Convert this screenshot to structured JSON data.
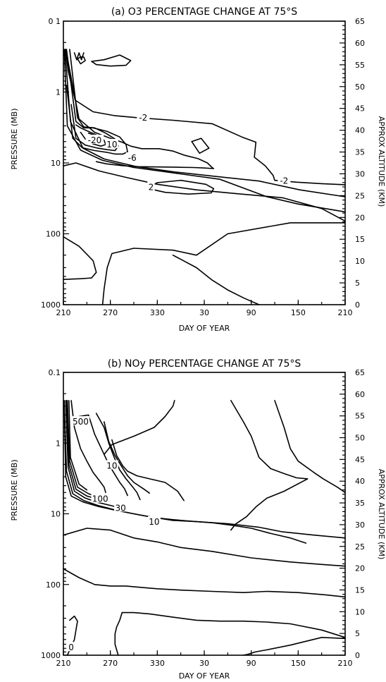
{
  "chart_data": [
    {
      "type": "contour",
      "title": "(a) O3 PERCENTAGE CHANGE AT 75°S",
      "xlabel": "DAY OF YEAR",
      "ylabel": "PRESSURE (MB)",
      "y2label": "APPROX ALTITUDE (KM)",
      "x_ticks": [
        "210",
        "270",
        "330",
        "30",
        "90",
        "150",
        "210"
      ],
      "y_ticks": [
        "0 1",
        "1",
        "10",
        "100",
        "1000"
      ],
      "y2_ticks": [
        "0",
        "5",
        "10",
        "15",
        "20",
        "25",
        "30",
        "35",
        "40",
        "45",
        "50",
        "55",
        "60",
        "65"
      ],
      "contour_labels": [
        {
          "text": "-2",
          "x": 312,
          "p": 2.3
        },
        {
          "text": "-20",
          "x": 250,
          "p": 4.8
        },
        {
          "text": "10",
          "x": 272,
          "p": 5.5
        },
        {
          "text": "-6",
          "x": 298,
          "p": 8.5
        },
        {
          "text": "2",
          "x": 322,
          "p": 22
        },
        {
          "text": "-2",
          "x": 492,
          "p": 18
        }
      ],
      "contours": [
        {
          "x": [
            213,
            216,
            225,
            248,
            275,
            305,
            350,
            400,
            438,
            456,
            454,
            468,
            478,
            480,
            508,
            540,
            570
          ],
          "p": [
            0.25,
            0.5,
            1.3,
            1.9,
            2.15,
            2.3,
            2.5,
            2.8,
            4.3,
            5.1,
            8.3,
            11,
            15,
            17.6,
            18.7,
            19.6,
            20.3
          ]
        },
        {
          "x": [
            212,
            219,
            235,
            262,
            302,
            352,
            407,
            460,
            512,
            570
          ],
          "p": [
            0.25,
            2.6,
            6.2,
            8.8,
            11.2,
            13.4,
            15.6,
            18,
            24,
            30
          ]
        },
        {
          "x": [
            211,
            215,
            232,
            260,
            300,
            350,
            410,
            470,
            510,
            570
          ],
          "p": [
            0.25,
            3,
            6.6,
            9.2,
            11.6,
            13.8,
            17,
            30,
            38,
            49
          ]
        },
        {
          "x": [
            213,
            230,
            250,
            268,
            285,
            296,
            310,
            332,
            350,
            365,
            382,
            394,
            400,
            402,
            390,
            376,
            355,
            330,
            305,
            285,
            265,
            252
          ],
          "p": [
            0.25,
            2.4,
            3.7,
            4.4,
            5.1,
            5.8,
            6.3,
            6.3,
            6.8,
            7.8,
            8.7,
            10,
            11.6,
            12,
            11.8,
            11.6,
            11.5,
            11.4,
            11.3,
            10.9,
            10.3,
            9.6
          ]
        },
        {
          "x": [
            214,
            226,
            236,
            248,
            266,
            282,
            290,
            292,
            286,
            276,
            266,
            250,
            234,
            222,
            214
          ],
          "p": [
            0.25,
            2.6,
            3.2,
            3.2,
            3.6,
            4.3,
            5.5,
            7,
            7.5,
            7.5,
            7.1,
            6.7,
            6.1,
            4.5,
            0.8
          ]
        },
        {
          "x": [
            218,
            228,
            236,
            250,
            264,
            276,
            280,
            276,
            266,
            254,
            238,
            226,
            220
          ],
          "p": [
            0.25,
            2.3,
            3.1,
            3.2,
            3.8,
            4.6,
            5.8,
            6.7,
            6.5,
            6.2,
            5.6,
            4.5,
            1.5
          ]
        },
        {
          "x": [
            226,
            232,
            242,
            254,
            262,
            264,
            258,
            248,
            238,
            232
          ],
          "p": [
            2.9,
            3.2,
            3.6,
            4.1,
            4.8,
            5.5,
            5.8,
            5.4,
            4.6,
            3.7
          ]
        },
        {
          "x": [
            242,
            248,
            250,
            246,
            242
          ],
          "p": [
            3.8,
            4,
            4.5,
            4.7,
            4.3
          ]
        },
        {
          "x": [
            330,
            360,
            392,
            402,
            399,
            370,
            340,
            326,
            321,
            330
          ],
          "p": [
            19,
            17.6,
            20,
            23,
            26.5,
            27.5,
            26,
            24,
            21.5,
            19
          ]
        },
        {
          "x": [
            374,
            386,
            396,
            384,
            374
          ],
          "p": [
            5,
            4.5,
            6.2,
            7.3,
            5
          ]
        },
        {
          "x": [
            246,
            262,
            282,
            296,
            290,
            270,
            252,
            246
          ],
          "p": [
            0.37,
            0.35,
            0.3,
            0.36,
            0.42,
            0.43,
            0.41,
            0.37
          ]
        },
        {
          "x": [
            232,
            236,
            238,
            232,
            228,
            232
          ],
          "p": [
            0.32,
            0.32,
            0.36,
            0.4,
            0.34,
            0.32
          ]
        },
        {
          "x": [
            224,
            227,
            230,
            233,
            236
          ],
          "p": [
            0.28,
            0.35,
            0.28,
            0.35,
            0.28
          ]
        },
        {
          "x": [
            210,
            226,
            256,
            290,
            330,
            380,
            430,
            490,
            540,
            570
          ],
          "p": [
            11,
            10,
            13,
            16,
            20,
            24,
            27,
            31,
            44,
            66
          ]
        },
        {
          "x": [
            210,
            230,
            248,
            252,
            246,
            232,
            210
          ],
          "p": [
            110,
            150,
            240,
            350,
            420,
            430,
            440
          ]
        },
        {
          "x": [
            570,
            500,
            420,
            380,
            350,
            300,
            272,
            266,
            262,
            260
          ],
          "p": [
            70,
            70,
            100,
            200,
            170,
            160,
            190,
            300,
            600,
            1000
          ]
        },
        {
          "x": [
            350,
            380,
            400,
            420,
            440,
            460
          ],
          "p": [
            200,
            300,
            450,
            620,
            800,
            1000
          ]
        }
      ]
    },
    {
      "type": "contour",
      "title": "(b) NOy PERCENTAGE CHANGE AT 75°S",
      "xlabel": "DAY OF YEAR",
      "ylabel": "PRESSURE (MB)",
      "y2label": "APPROX ALTITUDE (KM)",
      "x_ticks": [
        "210",
        "270",
        "330",
        "30",
        "90",
        "150",
        "210"
      ],
      "y_ticks": [
        "0.1",
        "1",
        "10",
        "100",
        "1000"
      ],
      "y2_ticks": [
        "0",
        "5",
        "10",
        "15",
        "20",
        "25",
        "30",
        "35",
        "40",
        "45",
        "50",
        "55",
        "60",
        "65"
      ],
      "contour_labels": [
        {
          "text": "500",
          "x": 232,
          "p": 0.5
        },
        {
          "text": "10",
          "x": 272,
          "p": 2.1
        },
        {
          "text": "100",
          "x": 257,
          "p": 6.2
        },
        {
          "text": "30",
          "x": 283,
          "p": 8.3
        },
        {
          "text": "10",
          "x": 326,
          "p": 13
        },
        {
          "text": "0",
          "x": 220,
          "p": 780
        }
      ],
      "contours": [
        {
          "x": [
            211,
            214,
            222,
            236,
            254,
            274,
            298,
            320,
            350,
            380,
            420,
            460,
            490,
            530,
            570
          ],
          "p": [
            0.25,
            2.5,
            5.2,
            6.5,
            7.6,
            8.7,
            9.9,
            11,
            12.4,
            12.9,
            13.8,
            15.5,
            18,
            20,
            22
          ]
        },
        {
          "x": [
            211,
            213,
            220,
            235,
            255,
            278,
            300,
            325,
            350,
            375,
            400,
            425,
            450,
            475,
            500,
            520
          ],
          "p": [
            0.25,
            3,
            5.6,
            6.8,
            7.9,
            9,
            10,
            11.3,
            12.1,
            12.8,
            13.4,
            14.5,
            16,
            19,
            22,
            26
          ]
        },
        {
          "x": [
            213,
            216,
            224,
            238,
            254,
            270,
            282
          ],
          "p": [
            0.25,
            2.2,
            4.8,
            6,
            6.9,
            7.6,
            8.2
          ]
        },
        {
          "x": [
            214,
            217,
            226,
            240,
            256,
            268
          ],
          "p": [
            0.25,
            2,
            4.5,
            5.6,
            6.3,
            6.7
          ]
        },
        {
          "x": [
            215,
            218,
            228,
            242,
            250
          ],
          "p": [
            0.25,
            1.8,
            4.2,
            5.2,
            5.6
          ]
        },
        {
          "x": [
            217,
            219,
            230,
            240
          ],
          "p": [
            0.25,
            1.6,
            3.8,
            4.6
          ]
        },
        {
          "x": [
            220,
            224,
            232,
            240,
            248,
            256,
            262,
            264
          ],
          "p": [
            0.25,
            0.6,
            1.2,
            1.8,
            2.6,
            3.4,
            4.2,
            5
          ]
        },
        {
          "x": [
            230,
            242,
            250,
            260,
            268,
            276,
            282,
            288,
            292
          ],
          "p": [
            0.42,
            0.4,
            0.75,
            1.3,
            2,
            2.8,
            3.6,
            4.4,
            5.5
          ]
        },
        {
          "x": [
            252,
            262,
            268,
            275,
            282,
            290,
            298,
            304,
            308
          ],
          "p": [
            0.38,
            0.6,
            1,
            1.6,
            2.4,
            3.2,
            4.1,
            5,
            6.3
          ]
        },
        {
          "x": [
            262,
            268,
            276,
            284,
            292,
            300,
            312,
            320
          ],
          "p": [
            0.5,
            0.95,
            1.5,
            2.1,
            2.9,
            3.6,
            4.4,
            5.1
          ]
        },
        {
          "x": [
            272,
            278,
            286,
            292,
            304,
            320,
            340,
            356,
            364
          ],
          "p": [
            0.9,
            1.5,
            2.1,
            2.5,
            2.9,
            3.2,
            3.6,
            4.8,
            6.5
          ]
        },
        {
          "x": [
            262,
            272,
            300,
            326,
            340,
            350,
            352
          ],
          "p": [
            1.45,
            1.05,
            0.8,
            0.6,
            0.42,
            0.3,
            0.25
          ]
        },
        {
          "x": [
            424,
            440,
            450,
            460,
            475,
            492,
            508,
            522,
            492,
            470,
            456,
            444,
            430,
            424
          ],
          "p": [
            0.25,
            0.5,
            0.8,
            1.6,
            2.3,
            2.7,
            3.1,
            3.2,
            4.8,
            6,
            8,
            11,
            14,
            17
          ]
        },
        {
          "x": [
            480,
            492,
            500,
            510,
            530,
            542,
            560,
            570
          ],
          "p": [
            0.25,
            0.6,
            1.2,
            1.8,
            2.6,
            3.2,
            4.2,
            5
          ]
        },
        {
          "x": [
            210,
            240,
            270,
            300,
            330,
            360,
            400,
            450,
            500,
            540,
            570
          ],
          "p": [
            20,
            16,
            17,
            22,
            25,
            30,
            34,
            42,
            48,
            52,
            55
          ]
        },
        {
          "x": [
            210,
            230,
            250,
            270,
            290,
            310,
            330,
            360,
            400,
            440,
            470,
            510,
            545,
            570
          ],
          "p": [
            60,
            80,
            100,
            105,
            105,
            110,
            115,
            120,
            125,
            130,
            125,
            130,
            140,
            150
          ]
        },
        {
          "x": [
            570,
            540,
            500,
            470,
            440,
            410,
            380,
            350,
            320,
            300,
            285
          ],
          "p": [
            560,
            440,
            360,
            340,
            330,
            330,
            320,
            290,
            260,
            250,
            250
          ]
        },
        {
          "x": [
            285,
            282,
            278,
            276,
            276,
            280
          ],
          "p": [
            250,
            320,
            400,
            500,
            700,
            1000
          ]
        },
        {
          "x": [
            570,
            540,
            500,
            470,
            455,
            450,
            446,
            440
          ],
          "p": [
            580,
            560,
            720,
            840,
            900,
            940,
            970,
            1000
          ]
        },
        {
          "x": [
            215,
            224,
            228,
            224,
            218
          ],
          "p": [
            1000,
            600,
            330,
            280,
            320
          ]
        }
      ]
    }
  ]
}
